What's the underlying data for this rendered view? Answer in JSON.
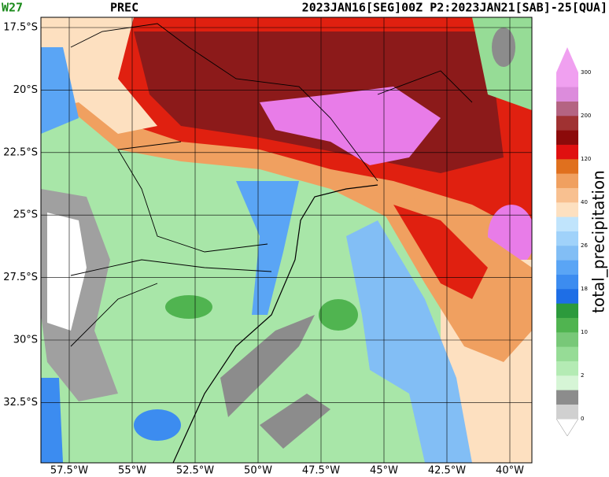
{
  "header": {
    "panel": "W27",
    "variable": "PREC",
    "title": "2023JAN16[SEG]00Z P2:2023JAN21[SAB]-25[QUA]"
  },
  "map": {
    "lat_labels": [
      "17.5°S",
      "20°S",
      "22.5°S",
      "25°S",
      "27.5°S",
      "30°S",
      "32.5°S"
    ],
    "lon_labels": [
      "57.5°W",
      "55°W",
      "52.5°W",
      "50°W",
      "47.5°W",
      "45°W",
      "42.5°W",
      "40°W"
    ]
  },
  "colorbar": {
    "label": "total_precipitation",
    "tick_labels": [
      0,
      2,
      10,
      18,
      26,
      40,
      120,
      200,
      300
    ],
    "colors": [
      "#ffffff",
      "#d0d0d0",
      "#8c8c8c",
      "#d6f5d6",
      "#b4ebb4",
      "#96dc96",
      "#78c878",
      "#50b450",
      "#2c9a3c",
      "#1e6ee6",
      "#3c8cf0",
      "#5aa5f5",
      "#82bef5",
      "#a0d2fa",
      "#c0e4fc",
      "#fde0c0",
      "#f8c090",
      "#f0a060",
      "#e0701e",
      "#e01010",
      "#8c0a0a",
      "#a03232",
      "#b46482",
      "#dc8cdc",
      "#f0a0f0"
    ]
  }
}
